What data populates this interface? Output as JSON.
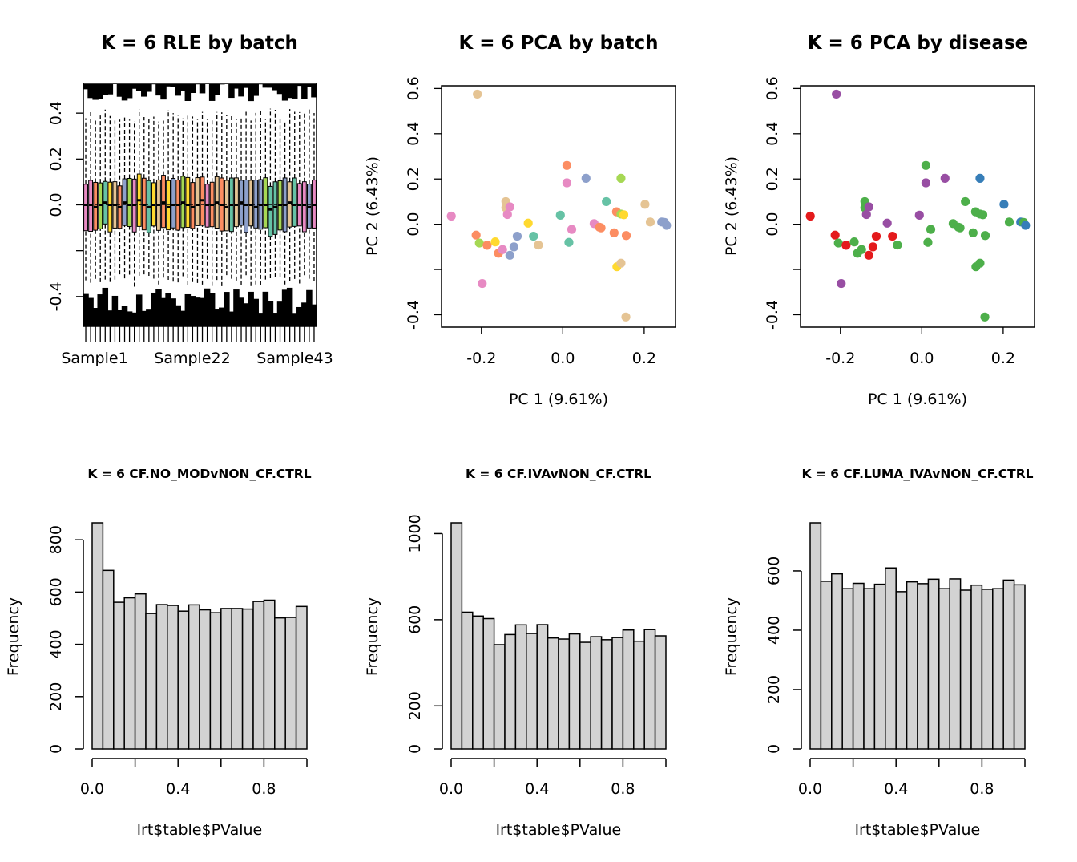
{
  "chart_data": [
    {
      "type": "box",
      "title": "K = 6 RLE by batch",
      "xlabel": "",
      "ylabel": "",
      "ylim": [
        -0.53,
        0.53
      ],
      "yticks": [
        -0.4,
        0.0,
        0.2,
        0.4
      ],
      "ytick_labels": [
        "-0.4",
        "0.0",
        "0.2",
        "0.4"
      ],
      "xtick_labels": [
        "Sample1",
        "Sample22",
        "Sample43"
      ],
      "n_samples": 48,
      "medians": [
        0.0,
        0.0,
        -0.01,
        0.0,
        0.01,
        0.0,
        0.0,
        -0.01,
        0.01,
        0.0,
        0.0,
        0.02,
        0.0,
        -0.01,
        0.0,
        0.0,
        0.01,
        -0.01,
        0.0,
        0.0,
        0.01,
        0.0,
        -0.01,
        0.0,
        0.02,
        0.0,
        0.0,
        0.01,
        0.0,
        -0.01,
        0.0,
        0.0,
        0.01,
        0.0,
        0.0,
        -0.01,
        0.0,
        0.0,
        -0.02,
        -0.01,
        0.0,
        0.0,
        0.01,
        0.0,
        0.0,
        0.0,
        -0.01,
        0.0
      ],
      "box_colors": [
        "#E78AC3",
        "#E78AC3",
        "#FC8D62",
        "#A6D854",
        "#66C2A5",
        "#FFD92F",
        "#E5C494",
        "#FC8D62",
        "#8DA0CB",
        "#A6D854",
        "#E78AC3",
        "#FFD92F",
        "#FC8D62",
        "#66C2A5",
        "#FFD92F",
        "#E5C494",
        "#FC8D62",
        "#FFD92F",
        "#8DA0CB",
        "#FC8D62",
        "#A6D854",
        "#FFD92F",
        "#FC8D62",
        "#E5C494",
        "#FC8D62",
        "#E78AC3",
        "#FC8D62",
        "#E5C494",
        "#FC8D62",
        "#E5C494",
        "#66C2A5",
        "#E5C494",
        "#8DA0CB",
        "#8DA0CB",
        "#E5C494",
        "#8DA0CB",
        "#8DA0CB",
        "#A6D854",
        "#66C2A5",
        "#66C2A5",
        "#A6D854",
        "#8DA0CB",
        "#E5C494",
        "#66C2A5",
        "#E78AC3",
        "#E78AC3",
        "#8DA0CB",
        "#E78AC3"
      ]
    },
    {
      "type": "scatter",
      "title": "K = 6 PCA by batch",
      "xlabel": "PC 1 (9.61%)",
      "ylabel": "PC 2 (6.43%)",
      "xlim": [
        -0.298,
        0.277
      ],
      "ylim": [
        -0.455,
        0.612
      ],
      "xticks": [
        -0.2,
        0.0,
        0.2
      ],
      "xtick_labels": [
        "-0.2",
        "0.0",
        "0.2"
      ],
      "yticks": [
        -0.4,
        0.0,
        0.2,
        0.4,
        0.6
      ],
      "ytick_labels": [
        "-0.4",
        "0.0",
        "0.2",
        "0.4",
        "0.6"
      ],
      "points": [
        {
          "x": -0.274,
          "y": 0.036,
          "color": "#E78AC3"
        },
        {
          "x": -0.21,
          "y": 0.575,
          "color": "#E5C494"
        },
        {
          "x": -0.213,
          "y": -0.048,
          "color": "#FC8D62"
        },
        {
          "x": -0.205,
          "y": -0.083,
          "color": "#A6D854"
        },
        {
          "x": -0.198,
          "y": -0.262,
          "color": "#E78AC3"
        },
        {
          "x": -0.186,
          "y": -0.093,
          "color": "#FC8D62"
        },
        {
          "x": -0.166,
          "y": -0.078,
          "color": "#FFD92F"
        },
        {
          "x": -0.158,
          "y": -0.128,
          "color": "#FC8D62"
        },
        {
          "x": -0.148,
          "y": -0.112,
          "color": "#E78AC3"
        },
        {
          "x": -0.14,
          "y": 0.1,
          "color": "#E5C494"
        },
        {
          "x": -0.14,
          "y": 0.073,
          "color": "#E5C494"
        },
        {
          "x": -0.136,
          "y": 0.043,
          "color": "#E78AC3"
        },
        {
          "x": -0.13,
          "y": 0.077,
          "color": "#E78AC3"
        },
        {
          "x": -0.13,
          "y": -0.137,
          "color": "#8DA0CB"
        },
        {
          "x": -0.12,
          "y": -0.1,
          "color": "#8DA0CB"
        },
        {
          "x": -0.112,
          "y": -0.053,
          "color": "#8DA0CB"
        },
        {
          "x": -0.085,
          "y": 0.005,
          "color": "#FFD92F"
        },
        {
          "x": -0.072,
          "y": -0.053,
          "color": "#66C2A5"
        },
        {
          "x": -0.06,
          "y": -0.092,
          "color": "#E5C494"
        },
        {
          "x": -0.006,
          "y": 0.04,
          "color": "#66C2A5"
        },
        {
          "x": 0.01,
          "y": 0.26,
          "color": "#FC8D62"
        },
        {
          "x": 0.01,
          "y": 0.183,
          "color": "#E78AC3"
        },
        {
          "x": 0.015,
          "y": -0.08,
          "color": "#66C2A5"
        },
        {
          "x": 0.022,
          "y": -0.023,
          "color": "#E78AC3"
        },
        {
          "x": 0.057,
          "y": 0.203,
          "color": "#8DA0CB"
        },
        {
          "x": 0.077,
          "y": 0.003,
          "color": "#E78AC3"
        },
        {
          "x": 0.09,
          "y": -0.013,
          "color": "#FC8D62"
        },
        {
          "x": 0.094,
          "y": -0.016,
          "color": "#FC8D62"
        },
        {
          "x": 0.107,
          "y": 0.1,
          "color": "#66C2A5"
        },
        {
          "x": 0.126,
          "y": -0.038,
          "color": "#FC8D62"
        },
        {
          "x": 0.132,
          "y": 0.055,
          "color": "#FC8D62"
        },
        {
          "x": 0.133,
          "y": -0.188,
          "color": "#FFD92F"
        },
        {
          "x": 0.143,
          "y": -0.172,
          "color": "#E5C494"
        },
        {
          "x": 0.143,
          "y": 0.203,
          "color": "#A6D854"
        },
        {
          "x": 0.143,
          "y": 0.045,
          "color": "#A6D854"
        },
        {
          "x": 0.15,
          "y": 0.042,
          "color": "#FFD92F"
        },
        {
          "x": 0.155,
          "y": -0.41,
          "color": "#E5C494"
        },
        {
          "x": 0.156,
          "y": -0.05,
          "color": "#FC8D62"
        },
        {
          "x": 0.202,
          "y": 0.088,
          "color": "#E5C494"
        },
        {
          "x": 0.215,
          "y": 0.01,
          "color": "#E5C494"
        },
        {
          "x": 0.243,
          "y": 0.01,
          "color": "#8DA0CB"
        },
        {
          "x": 0.25,
          "y": 0.008,
          "color": "#8DA0CB"
        },
        {
          "x": 0.255,
          "y": -0.005,
          "color": "#8DA0CB"
        }
      ]
    },
    {
      "type": "scatter",
      "title": "K = 6 PCA by disease",
      "xlabel": "PC 1 (9.61%)",
      "ylabel": "PC 2 (6.43%)",
      "xlim": [
        -0.298,
        0.277
      ],
      "ylim": [
        -0.455,
        0.612
      ],
      "xticks": [
        -0.2,
        0.0,
        0.2
      ],
      "xtick_labels": [
        "-0.2",
        "0.0",
        "0.2"
      ],
      "yticks": [
        -0.4,
        0.0,
        0.2,
        0.4,
        0.6
      ],
      "ytick_labels": [
        "-0.4",
        "0.0",
        "0.2",
        "0.4",
        "0.6"
      ],
      "points": [
        {
          "x": -0.274,
          "y": 0.036,
          "color": "#E41A1C"
        },
        {
          "x": -0.21,
          "y": 0.575,
          "color": "#984EA3"
        },
        {
          "x": -0.213,
          "y": -0.048,
          "color": "#E41A1C"
        },
        {
          "x": -0.205,
          "y": -0.083,
          "color": "#4DAF4A"
        },
        {
          "x": -0.198,
          "y": -0.262,
          "color": "#984EA3"
        },
        {
          "x": -0.186,
          "y": -0.093,
          "color": "#E41A1C"
        },
        {
          "x": -0.166,
          "y": -0.078,
          "color": "#4DAF4A"
        },
        {
          "x": -0.158,
          "y": -0.128,
          "color": "#4DAF4A"
        },
        {
          "x": -0.148,
          "y": -0.112,
          "color": "#4DAF4A"
        },
        {
          "x": -0.14,
          "y": 0.1,
          "color": "#4DAF4A"
        },
        {
          "x": -0.14,
          "y": 0.073,
          "color": "#4DAF4A"
        },
        {
          "x": -0.136,
          "y": 0.043,
          "color": "#984EA3"
        },
        {
          "x": -0.13,
          "y": 0.077,
          "color": "#984EA3"
        },
        {
          "x": -0.13,
          "y": -0.137,
          "color": "#E41A1C"
        },
        {
          "x": -0.12,
          "y": -0.1,
          "color": "#E41A1C"
        },
        {
          "x": -0.112,
          "y": -0.053,
          "color": "#E41A1C"
        },
        {
          "x": -0.085,
          "y": 0.005,
          "color": "#984EA3"
        },
        {
          "x": -0.072,
          "y": -0.053,
          "color": "#E41A1C"
        },
        {
          "x": -0.06,
          "y": -0.092,
          "color": "#4DAF4A"
        },
        {
          "x": -0.006,
          "y": 0.04,
          "color": "#984EA3"
        },
        {
          "x": 0.01,
          "y": 0.26,
          "color": "#4DAF4A"
        },
        {
          "x": 0.01,
          "y": 0.183,
          "color": "#984EA3"
        },
        {
          "x": 0.015,
          "y": -0.08,
          "color": "#4DAF4A"
        },
        {
          "x": 0.022,
          "y": -0.023,
          "color": "#4DAF4A"
        },
        {
          "x": 0.057,
          "y": 0.203,
          "color": "#984EA3"
        },
        {
          "x": 0.077,
          "y": 0.003,
          "color": "#4DAF4A"
        },
        {
          "x": 0.09,
          "y": -0.013,
          "color": "#4DAF4A"
        },
        {
          "x": 0.094,
          "y": -0.016,
          "color": "#4DAF4A"
        },
        {
          "x": 0.107,
          "y": 0.1,
          "color": "#4DAF4A"
        },
        {
          "x": 0.126,
          "y": -0.038,
          "color": "#4DAF4A"
        },
        {
          "x": 0.132,
          "y": 0.055,
          "color": "#4DAF4A"
        },
        {
          "x": 0.133,
          "y": -0.188,
          "color": "#4DAF4A"
        },
        {
          "x": 0.143,
          "y": -0.172,
          "color": "#4DAF4A"
        },
        {
          "x": 0.143,
          "y": 0.203,
          "color": "#377EB8"
        },
        {
          "x": 0.143,
          "y": 0.045,
          "color": "#4DAF4A"
        },
        {
          "x": 0.15,
          "y": 0.042,
          "color": "#4DAF4A"
        },
        {
          "x": 0.155,
          "y": -0.41,
          "color": "#4DAF4A"
        },
        {
          "x": 0.156,
          "y": -0.05,
          "color": "#4DAF4A"
        },
        {
          "x": 0.202,
          "y": 0.088,
          "color": "#377EB8"
        },
        {
          "x": 0.215,
          "y": 0.01,
          "color": "#4DAF4A"
        },
        {
          "x": 0.243,
          "y": 0.01,
          "color": "#377EB8"
        },
        {
          "x": 0.25,
          "y": 0.008,
          "color": "#4DAF4A"
        },
        {
          "x": 0.255,
          "y": -0.005,
          "color": "#377EB8"
        }
      ]
    },
    {
      "type": "histogram",
      "title": "K = 6 CF.NO_MODvNON_CF.CTRL",
      "xlabel": "lrt$table$PValue",
      "ylabel": "Frequency",
      "bin_edges": [
        0,
        0.05,
        0.1,
        0.15,
        0.2,
        0.25,
        0.3,
        0.35,
        0.4,
        0.45,
        0.5,
        0.55,
        0.6,
        0.65,
        0.7,
        0.75,
        0.8,
        0.85,
        0.9,
        0.95,
        1.0
      ],
      "values": [
        865,
        683,
        561,
        578,
        593,
        518,
        552,
        549,
        527,
        551,
        532,
        521,
        537,
        537,
        535,
        564,
        569,
        501,
        503,
        545
      ],
      "fill": "#D3D3D3",
      "xticks": [
        0.0,
        0.2,
        0.4,
        0.6,
        0.8,
        1.0
      ],
      "xtick_labels": [
        "0.0",
        "",
        "0.4",
        "",
        "0.8",
        ""
      ],
      "yticks": [
        0,
        200,
        400,
        600,
        800
      ],
      "ytick_labels": [
        "0",
        "200",
        "400",
        "600",
        "800"
      ],
      "ylim": [
        0,
        865
      ]
    },
    {
      "type": "histogram",
      "title": "K = 6 CF.IVAvNON_CF.CTRL",
      "xlabel": "lrt$table$PValue",
      "ylabel": "Frequency",
      "bin_edges": [
        0,
        0.05,
        0.1,
        0.15,
        0.2,
        0.25,
        0.3,
        0.35,
        0.4,
        0.45,
        0.5,
        0.55,
        0.6,
        0.65,
        0.7,
        0.75,
        0.8,
        0.85,
        0.9,
        0.95,
        1.0
      ],
      "values": [
        1050,
        635,
        617,
        605,
        484,
        531,
        576,
        536,
        577,
        515,
        510,
        534,
        495,
        521,
        507,
        517,
        552,
        500,
        554,
        525
      ],
      "fill": "#D3D3D3",
      "xticks": [
        0.0,
        0.2,
        0.4,
        0.6,
        0.8,
        1.0
      ],
      "xtick_labels": [
        "0.0",
        "",
        "0.4",
        "",
        "0.8",
        ""
      ],
      "yticks": [
        0,
        200,
        600,
        1000
      ],
      "ytick_labels": [
        "0",
        "200",
        "600",
        "1000"
      ],
      "ylim": [
        0,
        1050
      ]
    },
    {
      "type": "histogram",
      "title": "K = 6 CF.LUMA_IVAvNON_CF.CTRL",
      "xlabel": "lrt$table$PValue",
      "ylabel": "Frequency",
      "bin_edges": [
        0,
        0.05,
        0.1,
        0.15,
        0.2,
        0.25,
        0.3,
        0.35,
        0.4,
        0.45,
        0.5,
        0.55,
        0.6,
        0.65,
        0.7,
        0.75,
        0.8,
        0.85,
        0.9,
        0.95,
        1.0
      ],
      "values": [
        762,
        565,
        590,
        540,
        558,
        540,
        555,
        610,
        530,
        563,
        557,
        572,
        540,
        573,
        535,
        552,
        538,
        540,
        569,
        553
      ],
      "fill": "#D3D3D3",
      "xticks": [
        0.0,
        0.2,
        0.4,
        0.6,
        0.8,
        1.0
      ],
      "xtick_labels": [
        "0.0",
        "",
        "0.4",
        "",
        "0.8",
        ""
      ],
      "yticks": [
        0,
        200,
        400,
        600
      ],
      "ytick_labels": [
        "0",
        "200",
        "400",
        "600"
      ],
      "ylim": [
        0,
        762
      ]
    }
  ]
}
